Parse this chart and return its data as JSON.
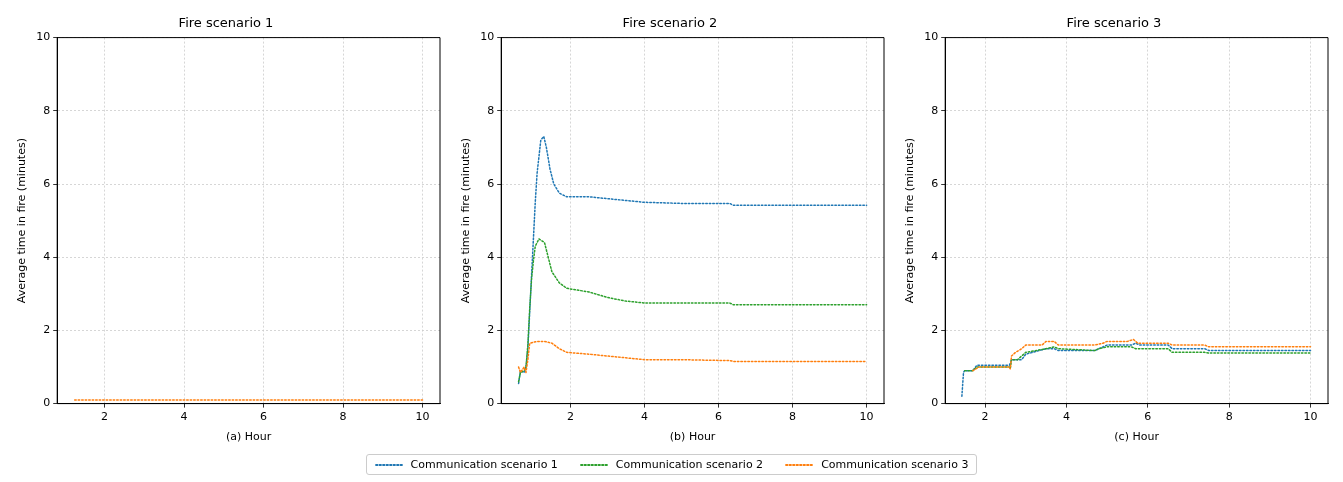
{
  "chart_data": [
    {
      "type": "line",
      "title": "Fire scenario 1",
      "xlabel": "(a) Hour",
      "ylabel": "Average time in fire (minutes)",
      "xlim": [
        0.81,
        10.44
      ],
      "xticks": [
        2,
        4,
        6,
        8,
        10
      ],
      "ylim": [
        0,
        10
      ],
      "yticks": [
        0,
        2,
        4,
        6,
        8,
        10
      ],
      "grid": true,
      "line_style": "dotted",
      "marker": "none",
      "series": [
        {
          "color": "#ff7f0e",
          "x": [
            1.25,
            10
          ],
          "values": [
            0.1,
            0.1
          ]
        }
      ]
    },
    {
      "type": "line",
      "title": "Fire scenario 2",
      "xlabel": "(b) Hour",
      "ylabel": "Average time in fire (minutes)",
      "xlim": [
        0.13,
        10.47
      ],
      "xticks": [
        2,
        4,
        6,
        8,
        10
      ],
      "ylim": [
        0,
        10
      ],
      "yticks": [
        0,
        2,
        4,
        6,
        8,
        10
      ],
      "grid": true,
      "legend": "bottom",
      "line_style": "dotted",
      "marker": "none",
      "series": [
        {
          "name": "Communication scenario 1",
          "color": "#1f77b4",
          "x": [
            0.6,
            0.65,
            0.75,
            0.8,
            0.85,
            0.9,
            0.95,
            1.0,
            1.05,
            1.1,
            1.2,
            1.28,
            1.35,
            1.45,
            1.55,
            1.7,
            1.9,
            2.5,
            3,
            3.5,
            4,
            5,
            6,
            6.3,
            6.4,
            8,
            10
          ],
          "values": [
            0.55,
            0.9,
            0.85,
            1.0,
            1.5,
            2.5,
            3.5,
            4.5,
            5.5,
            6.3,
            7.2,
            7.3,
            7.0,
            6.4,
            6.0,
            5.75,
            5.65,
            5.65,
            5.6,
            5.55,
            5.5,
            5.47,
            5.47,
            5.47,
            5.42,
            5.42,
            5.42
          ]
        },
        {
          "name": "Communication scenario 2",
          "color": "#2ca02c",
          "x": [
            0.6,
            0.65,
            0.75,
            0.8,
            0.85,
            0.9,
            0.95,
            1.0,
            1.05,
            1.15,
            1.3,
            1.4,
            1.5,
            1.7,
            1.9,
            2.5,
            3,
            3.5,
            4,
            5,
            6.3,
            6.4,
            10
          ],
          "values": [
            0.6,
            0.85,
            0.9,
            1.0,
            1.6,
            2.6,
            3.4,
            3.9,
            4.3,
            4.5,
            4.4,
            4.0,
            3.6,
            3.3,
            3.15,
            3.05,
            2.9,
            2.8,
            2.75,
            2.75,
            2.75,
            2.7,
            2.7
          ]
        },
        {
          "name": "Communication scenario 3",
          "color": "#ff7f0e",
          "x": [
            0.6,
            0.65,
            0.75,
            0.8,
            0.85,
            0.9,
            1.1,
            1.3,
            1.5,
            1.7,
            1.9,
            2.5,
            3,
            3.5,
            4,
            5,
            6,
            6.3,
            6.4,
            10
          ],
          "values": [
            1.0,
            0.85,
            1.0,
            0.85,
            1.2,
            1.65,
            1.7,
            1.7,
            1.65,
            1.5,
            1.4,
            1.35,
            1.3,
            1.25,
            1.2,
            1.2,
            1.18,
            1.18,
            1.15,
            1.15
          ]
        }
      ]
    },
    {
      "type": "line",
      "title": "Fire scenario 3",
      "xlabel": "(c) Hour",
      "ylabel": "Average time in fire (minutes)",
      "xlim": [
        1.02,
        10.43
      ],
      "xticks": [
        2,
        4,
        6,
        8,
        10
      ],
      "ylim": [
        0,
        10
      ],
      "yticks": [
        0,
        2,
        4,
        6,
        8,
        10
      ],
      "grid": true,
      "line_style": "dotted",
      "marker": "none",
      "series": [
        {
          "color": "#1f77b4",
          "x": [
            1.43,
            1.47,
            1.5,
            1.7,
            1.8,
            2.6,
            2.65,
            2.9,
            3.0,
            3.5,
            3.7,
            3.8,
            4.7,
            4.8,
            5.0,
            5.6,
            5.7,
            5.8,
            6.5,
            6.6,
            7.4,
            7.5,
            10
          ],
          "values": [
            0.2,
            0.85,
            0.9,
            0.9,
            1.05,
            1.05,
            1.2,
            1.2,
            1.35,
            1.5,
            1.5,
            1.45,
            1.45,
            1.5,
            1.6,
            1.6,
            1.65,
            1.6,
            1.6,
            1.5,
            1.5,
            1.45,
            1.45
          ]
        },
        {
          "color": "#2ca02c",
          "x": [
            1.5,
            1.7,
            1.8,
            2.6,
            2.62,
            2.65,
            2.8,
            3.0,
            3.5,
            3.7,
            3.8,
            4.7,
            4.8,
            5.0,
            5.6,
            5.7,
            6.5,
            6.6,
            7.4,
            7.5,
            10
          ],
          "values": [
            0.9,
            0.9,
            1.0,
            1.0,
            0.95,
            1.2,
            1.2,
            1.4,
            1.5,
            1.55,
            1.5,
            1.45,
            1.5,
            1.55,
            1.55,
            1.5,
            1.5,
            1.4,
            1.4,
            1.38,
            1.38
          ]
        },
        {
          "color": "#ff7f0e",
          "x": [
            1.7,
            1.85,
            2.6,
            2.62,
            2.65,
            2.75,
            2.9,
            3.0,
            3.4,
            3.5,
            3.7,
            3.8,
            4.0,
            4.5,
            4.7,
            4.9,
            5.0,
            5.5,
            5.65,
            5.75,
            6.5,
            6.6,
            7.4,
            7.5,
            10
          ],
          "values": [
            0.9,
            1.0,
            1.0,
            0.95,
            1.3,
            1.4,
            1.5,
            1.6,
            1.6,
            1.7,
            1.7,
            1.6,
            1.6,
            1.6,
            1.6,
            1.65,
            1.7,
            1.7,
            1.75,
            1.65,
            1.65,
            1.6,
            1.6,
            1.55,
            1.55
          ]
        }
      ]
    }
  ]
}
